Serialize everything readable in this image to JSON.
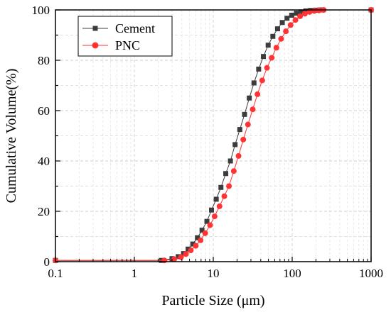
{
  "chart_data": {
    "type": "scatter",
    "xlabel": "Particle Size (μm)",
    "ylabel": "Cumulative Volume(%)",
    "x_scale": "log",
    "xlim": [
      0.1,
      1000
    ],
    "ylim": [
      0,
      100
    ],
    "x_ticks": [
      "0.1",
      "1",
      "10",
      "100",
      "1000"
    ],
    "y_ticks": [
      "0",
      "20",
      "40",
      "60",
      "80",
      "100"
    ],
    "grid": true,
    "legend_position": "top-left",
    "series": [
      {
        "name": "Cement",
        "color": "#3c3c3c",
        "marker": "square",
        "x": [
          0.1,
          2.2,
          3.0,
          3.6,
          4.2,
          4.8,
          5.5,
          6.3,
          7.2,
          8.3,
          9.5,
          10.9,
          12.5,
          14.4,
          16.5,
          18.9,
          21.7,
          24.9,
          28.6,
          32.8,
          37.6,
          43.2,
          49.6,
          56.9,
          65.3,
          74.9,
          86.0,
          98.7,
          113,
          130,
          149,
          171,
          197,
          226,
          1000
        ],
        "y": [
          0.5,
          0.5,
          1.2,
          2.0,
          3.2,
          5.0,
          7.0,
          9.5,
          12.5,
          16.0,
          20.5,
          24.8,
          29.5,
          35.0,
          40.0,
          46.5,
          52.5,
          58.5,
          65.0,
          71.0,
          76.5,
          81.5,
          86.0,
          89.5,
          92.5,
          95.0,
          96.7,
          97.9,
          98.7,
          99.2,
          99.6,
          99.8,
          99.9,
          100,
          100
        ]
      },
      {
        "name": "PNC",
        "color": "#ff3333",
        "marker": "circle",
        "x": [
          0.1,
          2.4,
          3.2,
          3.9,
          4.5,
          5.2,
          6.0,
          6.9,
          7.9,
          9.1,
          10.4,
          12.0,
          13.8,
          15.8,
          18.2,
          20.9,
          24.0,
          27.5,
          31.6,
          36.3,
          41.7,
          47.9,
          55.0,
          63.1,
          72.4,
          83.2,
          95.5,
          110,
          126,
          145,
          166,
          191,
          219,
          251,
          1000
        ],
        "y": [
          0.5,
          0.5,
          1.0,
          1.8,
          3.0,
          4.5,
          6.3,
          8.5,
          11.3,
          14.5,
          18.0,
          22.0,
          26.0,
          30.0,
          36.0,
          42.0,
          48.5,
          54.5,
          60.5,
          66.5,
          72.0,
          77.0,
          81.0,
          85.0,
          88.5,
          91.5,
          94.0,
          96.0,
          97.5,
          98.5,
          99.2,
          99.6,
          99.8,
          100,
          100
        ]
      }
    ]
  }
}
